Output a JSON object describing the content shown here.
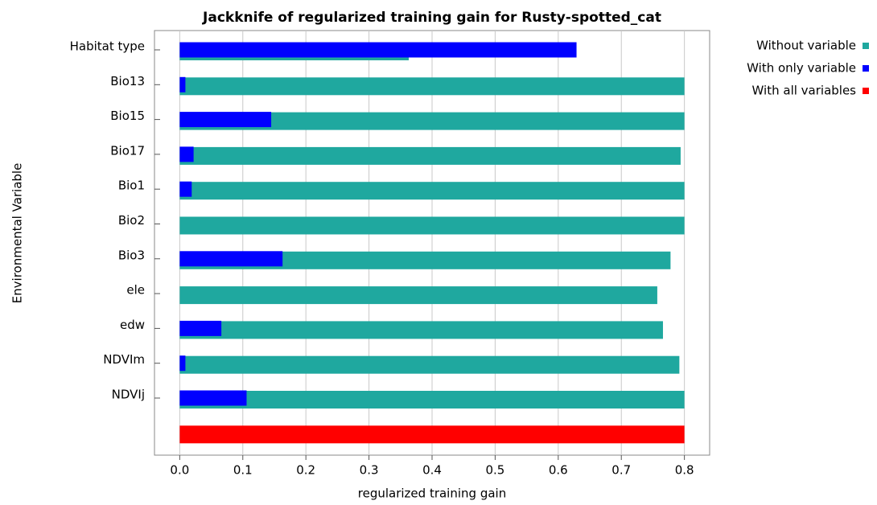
{
  "chart_data": {
    "type": "bar",
    "orientation": "horizontal",
    "title": "Jackknife of regularized training gain for Rusty-spotted_cat",
    "x_label": "regularized training gain",
    "y_label": "Environmental Variable",
    "categories": [
      "Habitat type",
      "Bio13",
      "Bio15",
      "Bio17",
      "Bio1",
      "Bio2",
      "Bio3",
      "ele",
      "edw",
      "NDVIm",
      "NDVIj",
      null
    ],
    "series": [
      {
        "name": "Without variable",
        "color": "#1fa89f",
        "values": [
          0.363,
          0.8,
          0.8,
          0.794,
          0.8,
          0.8,
          0.778,
          0.757,
          0.766,
          0.792,
          0.8,
          null
        ]
      },
      {
        "name": "With only variable",
        "color": "#0000ff",
        "values": [
          0.629,
          0.009,
          0.145,
          0.022,
          0.019,
          0,
          0.163,
          0,
          0.066,
          0.009,
          0.106,
          null
        ]
      },
      {
        "name": "With all variables",
        "color": "#ff0000",
        "values": [
          null,
          null,
          null,
          null,
          null,
          null,
          null,
          null,
          null,
          null,
          null,
          0.8
        ]
      }
    ],
    "xlim": [
      -0.04,
      0.84
    ],
    "xticks": [
      {
        "value": 0,
        "label": "0.0"
      },
      0.1,
      0.2,
      0.3,
      0.4,
      0.5,
      0.6,
      0.7,
      0.8
    ],
    "grid": true,
    "legend": "outside-right"
  }
}
